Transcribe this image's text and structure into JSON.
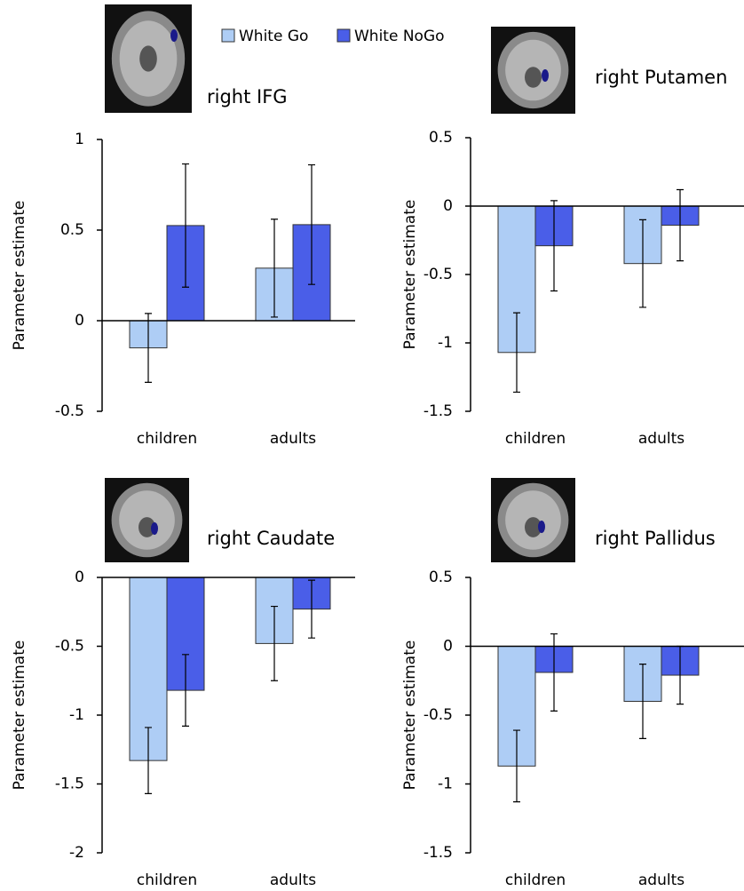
{
  "chart_data": [
    {
      "type": "bar",
      "title": "right IFG",
      "y_label": "Parameter estimate",
      "categories": [
        "children",
        "adults"
      ],
      "series": [
        {
          "name": "White Go",
          "color": "#aecdf5",
          "values": [
            -0.15,
            0.29
          ],
          "errors": [
            0.19,
            0.27
          ]
        },
        {
          "name": "White NoGo",
          "color": "#4a5ee8",
          "values": [
            0.525,
            0.53
          ],
          "errors": [
            0.34,
            0.33
          ]
        }
      ],
      "ylim": [
        -0.5,
        1
      ],
      "yticks": [
        -0.5,
        0,
        0.5,
        1
      ]
    },
    {
      "type": "bar",
      "title": "right Putamen",
      "y_label": "Parameter estimate",
      "categories": [
        "children",
        "adults"
      ],
      "series": [
        {
          "color": "#aecdf5",
          "values": [
            -1.07,
            -0.42
          ],
          "errors": [
            0.29,
            0.32
          ]
        },
        {
          "color": "#4a5ee8",
          "values": [
            -0.29,
            -0.14
          ],
          "errors": [
            0.33,
            0.26
          ]
        }
      ],
      "ylim": [
        -1.5,
        0.5
      ],
      "yticks": [
        -1.5,
        -1,
        -0.5,
        0,
        0.5
      ]
    },
    {
      "type": "bar",
      "title": "right Caudate",
      "y_label": "Parameter estimate",
      "categories": [
        "children",
        "adults"
      ],
      "series": [
        {
          "color": "#aecdf5",
          "values": [
            -1.33,
            -0.48
          ],
          "errors": [
            0.24,
            0.27
          ]
        },
        {
          "color": "#4a5ee8",
          "values": [
            -0.82,
            -0.23
          ],
          "errors": [
            0.26,
            0.21
          ]
        }
      ],
      "ylim": [
        -2,
        0
      ],
      "yticks": [
        -2,
        -1.5,
        -1,
        -0.5,
        0
      ]
    },
    {
      "type": "bar",
      "title": "right Pallidus",
      "y_label": "Parameter estimate",
      "categories": [
        "children",
        "adults"
      ],
      "series": [
        {
          "color": "#aecdf5",
          "values": [
            -0.87,
            -0.4
          ],
          "errors": [
            0.26,
            0.27
          ]
        },
        {
          "color": "#4a5ee8",
          "values": [
            -0.19,
            -0.21
          ],
          "errors": [
            0.28,
            0.21
          ]
        }
      ],
      "ylim": [
        -1.5,
        0.5
      ],
      "yticks": [
        -1.5,
        -1,
        -0.5,
        0,
        0.5
      ]
    }
  ]
}
